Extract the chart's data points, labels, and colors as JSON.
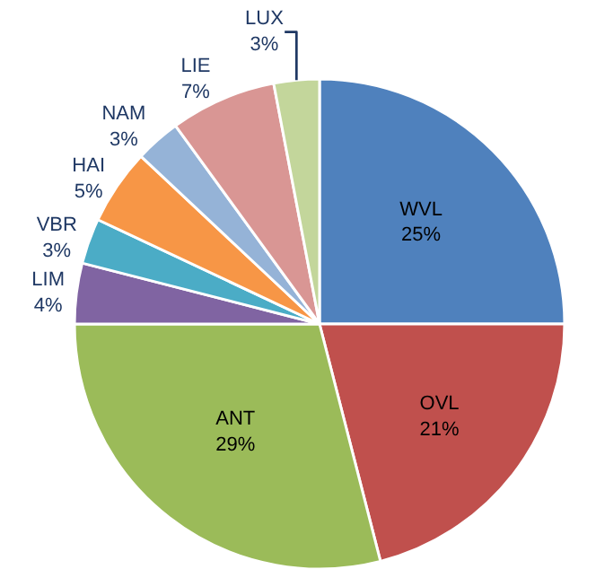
{
  "chart_data": {
    "type": "pie",
    "categories": [
      "WVL",
      "OVL",
      "ANT",
      "LIM",
      "VBR",
      "HAI",
      "NAM",
      "LIE",
      "LUX"
    ],
    "values": [
      25,
      21,
      29,
      4,
      3,
      5,
      3,
      7,
      3
    ],
    "value_labels": [
      "25%",
      "21%",
      "29%",
      "4%",
      "3%",
      "5%",
      "3%",
      "7%",
      "3%"
    ],
    "colors": [
      "#4f81bd",
      "#c0504d",
      "#9bbb59",
      "#8064a2",
      "#4bacc6",
      "#f79646",
      "#95b3d7",
      "#d99694",
      "#c3d69b"
    ],
    "legend": false
  }
}
